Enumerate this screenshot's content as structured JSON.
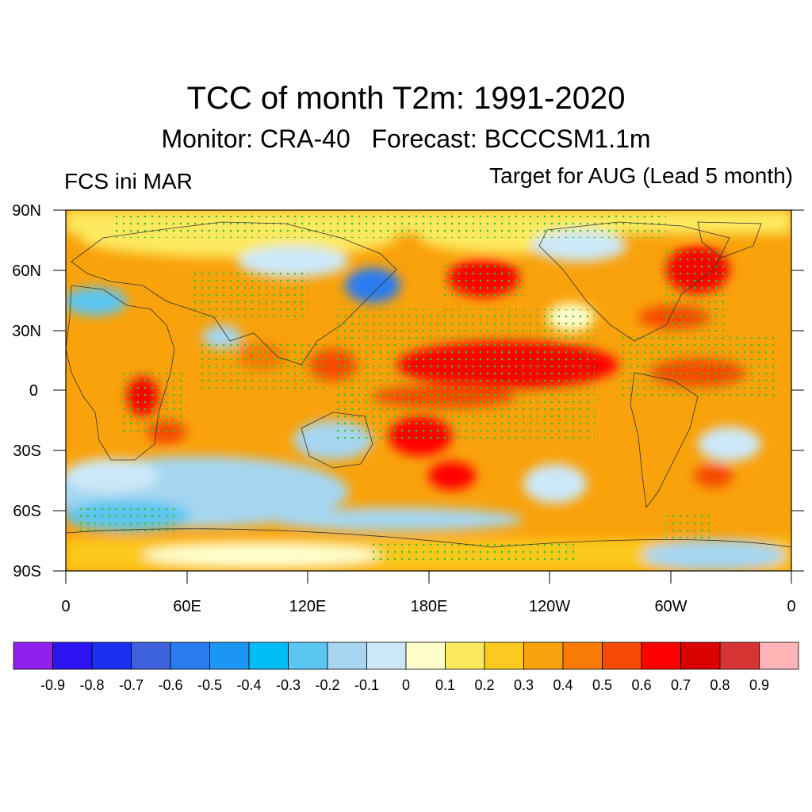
{
  "title": "TCC of month T2m: 1991-2020",
  "subtitle": "Monitor: CRA-40   Forecast: BCCCSM1.1m",
  "left_label": "FCS ini MAR",
  "right_label": "Target for AUG (Lead 5 month)",
  "map": {
    "y_ticks": [
      "90N",
      "60N",
      "30N",
      "0",
      "30S",
      "60S",
      "90S"
    ],
    "x_ticks": [
      "0",
      "60E",
      "120E",
      "180E",
      "120W",
      "60W",
      "0"
    ],
    "stipple_meaning": "significant"
  },
  "colorbar": {
    "colors": [
      "#8f20ef",
      "#2d14f5",
      "#1a2ff0",
      "#3e62dc",
      "#2b7bf0",
      "#1c96f5",
      "#00bcf7",
      "#5cc6f2",
      "#a6d6f0",
      "#ccE8f8",
      "#ffffcc",
      "#fde95e",
      "#fbc91f",
      "#f9a20b",
      "#f77b05",
      "#f54b06",
      "#ff0000",
      "#d80000",
      "#d83434",
      "#ffb3b5"
    ],
    "labels": [
      "-0.9",
      "-0.8",
      "-0.7",
      "-0.6",
      "-0.5",
      "-0.4",
      "-0.3",
      "-0.2",
      "-0.1",
      "0",
      "0.1",
      "0.2",
      "0.3",
      "0.4",
      "0.5",
      "0.6",
      "0.7",
      "0.8",
      "0.9"
    ]
  }
}
